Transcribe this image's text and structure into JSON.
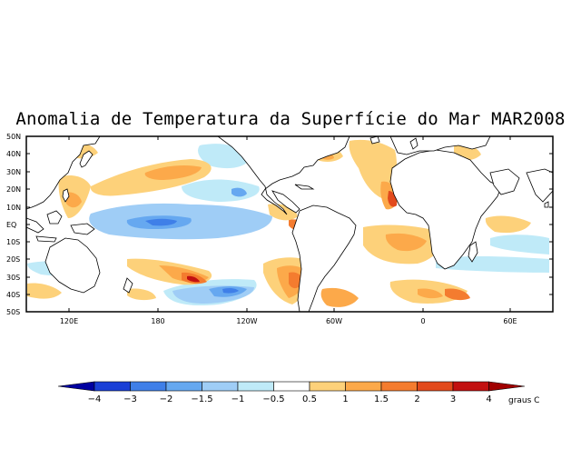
{
  "title": "Anomalia de Temperatura da Superfície do Mar MAR2008",
  "lat_labels": [
    "50N",
    "40N",
    "30N",
    "20N",
    "10N",
    "EQ",
    "10S",
    "20S",
    "30S",
    "40S",
    "50S"
  ],
  "lon_labels": [
    "120E",
    "180",
    "120W",
    "60W",
    "0",
    "60E"
  ],
  "colorbar": {
    "labels": [
      "−4",
      "−3",
      "−2",
      "−1.5",
      "−1",
      "−0.5",
      "0.5",
      "1",
      "1.5",
      "2",
      "3",
      "4"
    ],
    "colors": [
      "#0000a0",
      "#1a3fd6",
      "#3f7fe8",
      "#66a8f0",
      "#9fcdf6",
      "#bfeaf8",
      "#ffffff",
      "#fdd17a",
      "#fca94a",
      "#f47c2f",
      "#e24a1c",
      "#c21010",
      "#a00000",
      "#7a0000"
    ],
    "units": "graus C"
  },
  "land_color": "#ffffff",
  "coast_color": "#000000"
}
